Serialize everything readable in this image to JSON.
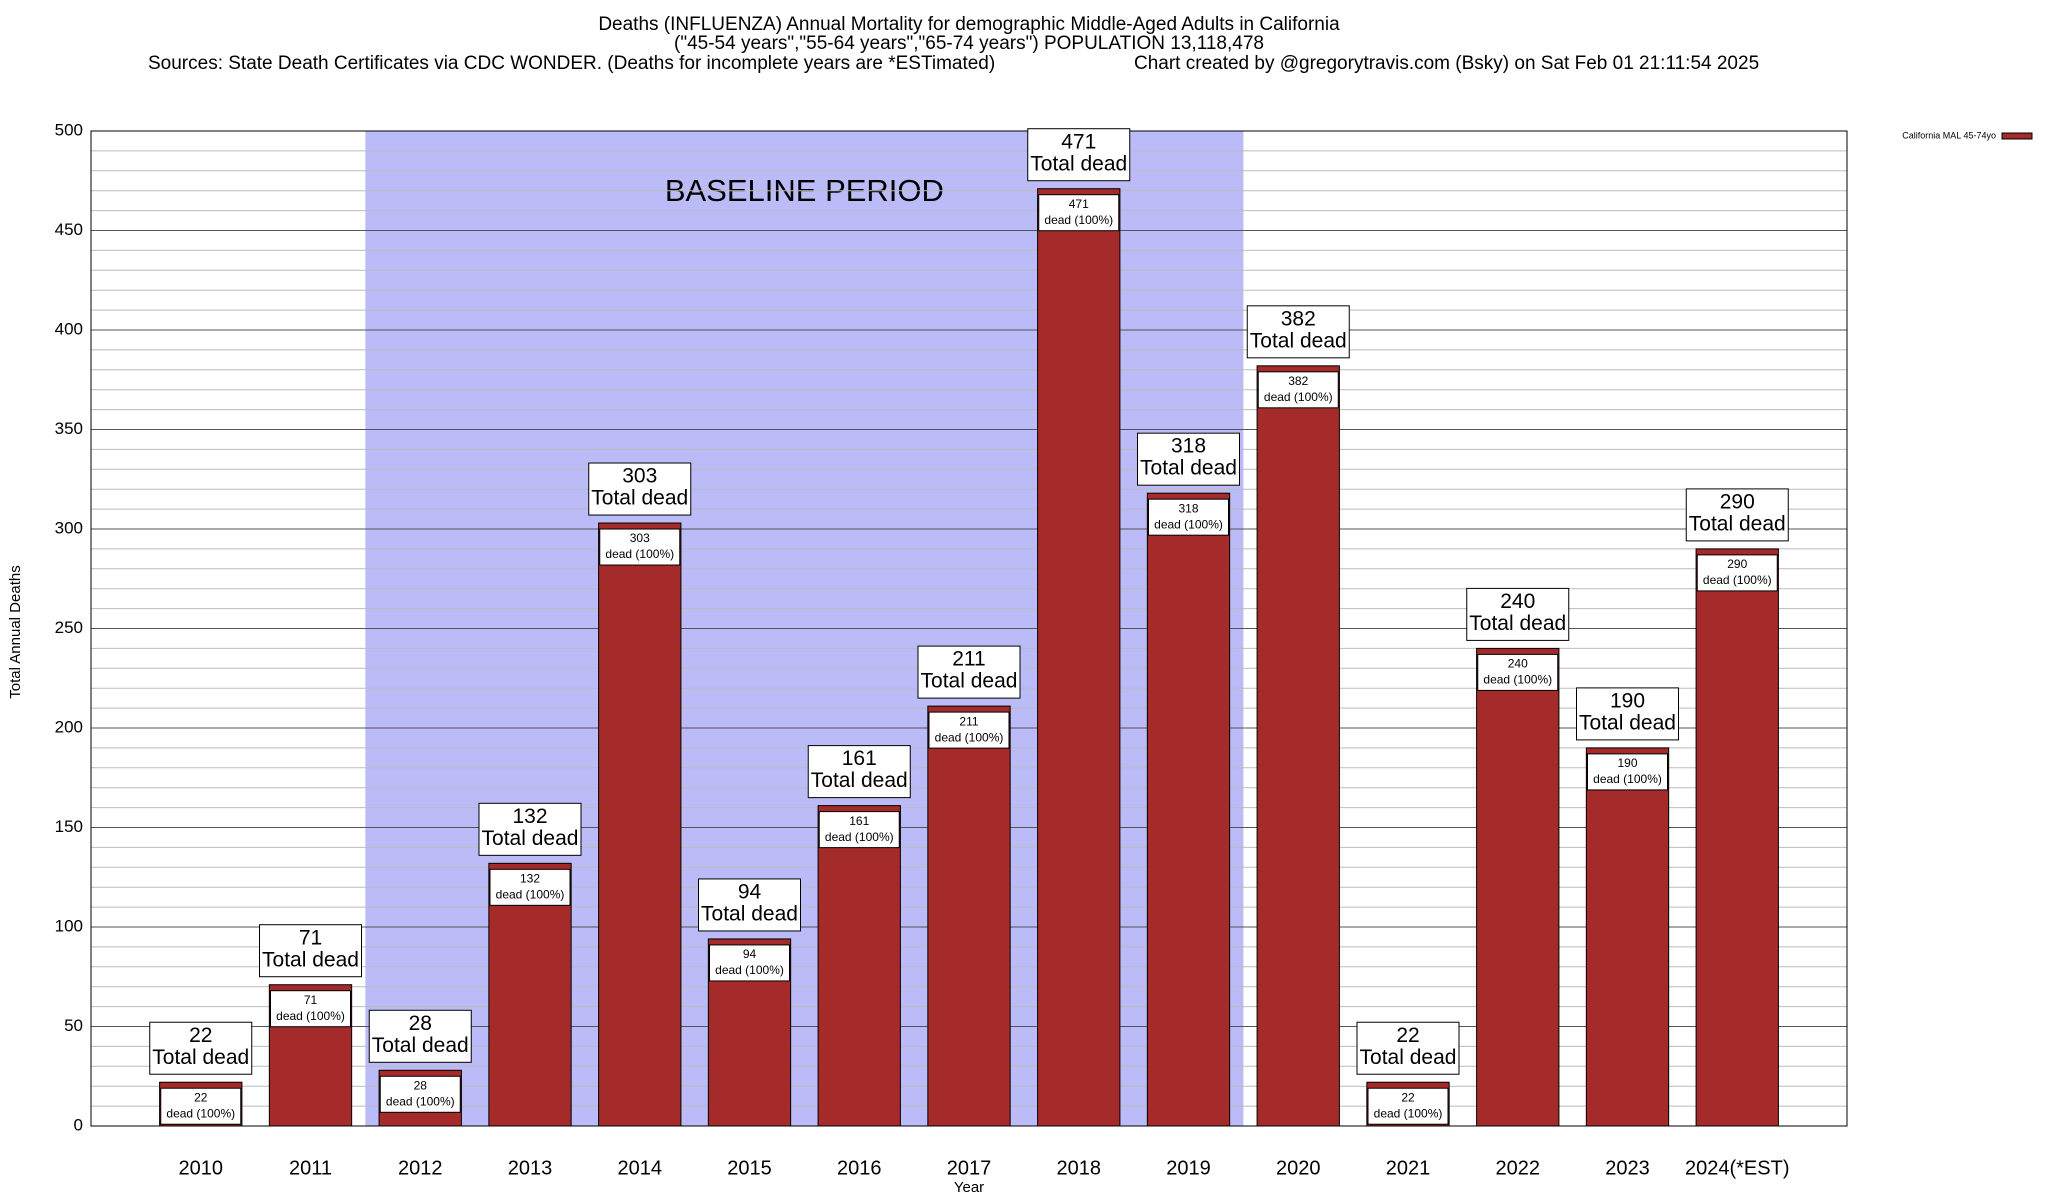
{
  "chart_data": {
    "type": "bar",
    "title": "Deaths (INFLUENZA) Annual Mortality for demographic Middle-Aged Adults in California",
    "subtitle": "(\"45-54 years\",\"55-64 years\",\"65-74 years\") POPULATION 13,118,478",
    "source": "Sources: State Death Certificates via CDC WONDER. (Deaths for incomplete years are *ESTimated)",
    "credit": "Chart created by @gregorytravis.com (Bsky) on Sat Feb 01 21:11:54 2025",
    "x_label": "Year",
    "y_label": "Total Annual Deaths",
    "categories": [
      "2010",
      "2011",
      "2012",
      "2013",
      "2014",
      "2015",
      "2016",
      "2017",
      "2018",
      "2019",
      "2020",
      "2021",
      "2022",
      "2023",
      "2024(*EST)"
    ],
    "series": [
      {
        "name": "California MAL 45-74yo",
        "color": "#a52a2a",
        "values": [
          22,
          71,
          28,
          132,
          303,
          94,
          161,
          211,
          471,
          318,
          382,
          22,
          240,
          190,
          290
        ]
      }
    ],
    "total_label": "Total dead",
    "share_label": "dead (100%)",
    "highlight": {
      "label": "BASELINE PERIOD",
      "from": "2012",
      "to": "2019",
      "color": "#bbbbf7"
    },
    "ylim": [
      0,
      500
    ],
    "yticks": [
      0,
      50,
      100,
      150,
      200,
      250,
      300,
      350,
      400,
      450,
      500
    ],
    "grid": true,
    "minor_grid_step": 10,
    "legend": "top-right"
  }
}
